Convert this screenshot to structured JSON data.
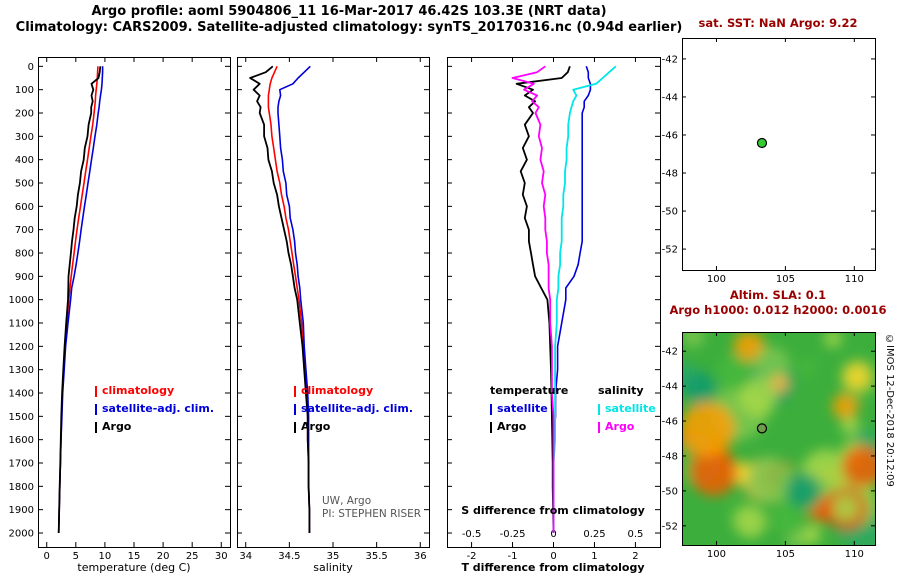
{
  "header": {
    "title_line1": "Argo profile: aoml 5904806_11 16-Mar-2017 46.42S 103.3E (NRT data)",
    "title_line2": "Climatology: CARS2009. Satellite-adjusted climatology: synTS_20170316.nc (0.94d earlier)"
  },
  "credits": {
    "org": "UW, Argo",
    "pi": "PI: STEPHEN RISER",
    "stamp": "©IMOS 12-Dec-2018 20:12:09"
  },
  "colors": {
    "climatology": "#ff0000",
    "satellite_adj": "#0000dd",
    "argo": "#000000",
    "salinity_satellite": "#00e6e6",
    "salinity_argo": "#ff00ff",
    "map_title": "#990000",
    "float_marker": "#33cc33",
    "sla_marker": "#6f9a4f",
    "sla_base": "#3cae3c"
  },
  "chart_data": [
    {
      "type": "line",
      "name": "temperature-profile",
      "xlabel": "temperature (deg C)",
      "x_ticks": [
        0,
        5,
        10,
        15,
        20,
        25,
        30
      ],
      "x_tick_labels": [
        "0",
        "5",
        "10",
        "15",
        "20",
        "25",
        "30"
      ],
      "xlim": [
        -1.5,
        31.5
      ],
      "y_ticks": [
        0,
        100,
        200,
        300,
        400,
        500,
        600,
        700,
        800,
        900,
        1000,
        1100,
        1200,
        1300,
        1400,
        1500,
        1600,
        1700,
        1800,
        1900,
        2000
      ],
      "ylim": [
        0,
        2000
      ],
      "depths": [
        0,
        25,
        50,
        75,
        100,
        125,
        150,
        175,
        200,
        250,
        300,
        350,
        400,
        450,
        500,
        550,
        600,
        650,
        700,
        750,
        800,
        850,
        900,
        950,
        1000,
        1100,
        1200,
        1300,
        1400,
        1500,
        1600,
        1700,
        1800,
        1900,
        2000
      ],
      "series": [
        {
          "name": "climatology",
          "color": "climatology",
          "values": [
            8.8,
            8.75,
            8.7,
            8.6,
            8.5,
            8.4,
            8.35,
            8.25,
            8.15,
            7.9,
            7.6,
            7.3,
            7.0,
            6.7,
            6.4,
            6.1,
            5.8,
            5.5,
            5.2,
            4.95,
            4.7,
            4.45,
            4.2,
            4.0,
            3.8,
            3.45,
            3.15,
            2.9,
            2.7,
            2.55,
            2.45,
            2.35,
            2.25,
            2.15,
            2.05
          ]
        },
        {
          "name": "satellite-adj. clim.",
          "color": "satellite_adj",
          "values": [
            9.6,
            9.6,
            9.55,
            9.5,
            9.4,
            9.25,
            9.1,
            9.0,
            8.85,
            8.6,
            8.3,
            8.0,
            7.7,
            7.4,
            7.1,
            6.8,
            6.5,
            6.2,
            5.9,
            5.65,
            5.35,
            5.05,
            4.7,
            4.3,
            4.1,
            3.65,
            3.25,
            3.0,
            2.75,
            2.6,
            2.45,
            2.35,
            2.25,
            2.15,
            2.05
          ]
        },
        {
          "name": "Argo",
          "color": "argo",
          "values": [
            9.2,
            9.1,
            8.9,
            7.7,
            8.0,
            7.7,
            7.9,
            7.65,
            7.65,
            7.2,
            7.0,
            6.55,
            6.35,
            5.9,
            5.7,
            5.35,
            5.15,
            4.8,
            4.6,
            4.35,
            4.15,
            3.95,
            3.75,
            3.7,
            3.65,
            3.35,
            3.07,
            2.84,
            2.65,
            2.51,
            2.42,
            2.33,
            2.23,
            2.14,
            2.05
          ]
        }
      ],
      "legend": [
        "climatology",
        "satellite-adj. clim.",
        "Argo"
      ]
    },
    {
      "type": "line",
      "name": "salinity-profile",
      "xlabel": "salinity",
      "x_ticks": [
        34,
        34.5,
        35,
        35.5,
        36
      ],
      "x_tick_labels": [
        "34",
        "34.5",
        "35",
        "35.5",
        "36"
      ],
      "xlim": [
        33.9,
        36.1
      ],
      "y_ticks": [
        0,
        100,
        200,
        300,
        400,
        500,
        600,
        700,
        800,
        900,
        1000,
        1100,
        1200,
        1300,
        1400,
        1500,
        1600,
        1700,
        1800,
        1900,
        2000
      ],
      "ylim": [
        0,
        2000
      ],
      "depths": [
        0,
        25,
        50,
        75,
        100,
        125,
        150,
        175,
        200,
        250,
        300,
        350,
        400,
        450,
        500,
        550,
        600,
        650,
        700,
        750,
        800,
        850,
        900,
        950,
        1000,
        1100,
        1200,
        1300,
        1400,
        1500,
        1600,
        1700,
        1800,
        1900,
        2000
      ],
      "series": [
        {
          "name": "climatology",
          "color": "climatology",
          "values": [
            34.36,
            34.33,
            34.3,
            34.28,
            34.27,
            34.26,
            34.26,
            34.26,
            34.27,
            34.29,
            34.3,
            34.32,
            34.34,
            34.36,
            34.39,
            34.41,
            34.44,
            34.46,
            34.49,
            34.51,
            34.53,
            34.55,
            34.57,
            34.59,
            34.61,
            34.64,
            34.66,
            34.68,
            34.7,
            34.71,
            34.71,
            34.72,
            34.72,
            34.73,
            34.73
          ]
        },
        {
          "name": "satellite-adj. clim.",
          "color": "satellite_adj",
          "values": [
            34.74,
            34.67,
            34.6,
            34.54,
            34.39,
            34.4,
            34.38,
            34.37,
            34.37,
            34.38,
            34.39,
            34.4,
            34.42,
            34.43,
            34.46,
            34.47,
            34.5,
            34.51,
            34.54,
            34.56,
            34.57,
            34.59,
            34.6,
            34.62,
            34.63,
            34.66,
            34.67,
            34.69,
            34.71,
            34.72,
            34.72,
            34.72,
            34.72,
            34.73,
            34.73
          ]
        },
        {
          "name": "Argo",
          "color": "argo",
          "values": [
            34.31,
            34.23,
            34.05,
            34.16,
            34.09,
            34.16,
            34.13,
            34.17,
            34.16,
            34.21,
            34.21,
            34.25,
            34.26,
            34.3,
            34.32,
            34.36,
            34.38,
            34.41,
            34.44,
            34.47,
            34.49,
            34.52,
            34.54,
            34.56,
            34.59,
            34.62,
            34.65,
            34.67,
            34.69,
            34.71,
            34.71,
            34.72,
            34.72,
            34.73,
            34.73
          ]
        }
      ],
      "legend": [
        "climatology",
        "satellite-adj. clim.",
        "Argo"
      ]
    },
    {
      "type": "line",
      "name": "difference-profile",
      "xlabel_bottom": "T difference from climatology",
      "xlabel_top": "S difference from climatology",
      "x_ticks": [
        -2,
        -1,
        0,
        1,
        2
      ],
      "x_tick_labels": [
        "-2",
        "-1",
        "0",
        "1",
        "2"
      ],
      "xlim": [
        -2.6,
        2.6
      ],
      "s_ticks": [
        -0.5,
        -0.25,
        0,
        0.25,
        0.5
      ],
      "s_tick_labels": [
        "-0.5",
        "-0.25",
        "0",
        "0.25",
        "0.5"
      ],
      "y_ticks": [
        0,
        100,
        200,
        300,
        400,
        500,
        600,
        700,
        800,
        900,
        1000,
        1100,
        1200,
        1300,
        1400,
        1500,
        1600,
        1700,
        1800,
        1900,
        2000
      ],
      "ylim": [
        0,
        2000
      ],
      "depths": [
        0,
        25,
        50,
        75,
        100,
        125,
        150,
        175,
        200,
        250,
        300,
        350,
        400,
        450,
        500,
        550,
        600,
        650,
        700,
        750,
        800,
        850,
        900,
        950,
        1000,
        1100,
        1200,
        1300,
        1400,
        1500,
        1600,
        1700,
        1800,
        1900,
        2000
      ],
      "series": [
        {
          "name": "T satellite",
          "axis": "T",
          "color": "satellite_adj",
          "values": [
            0.8,
            0.85,
            0.85,
            0.9,
            0.9,
            0.85,
            0.75,
            0.75,
            0.7,
            0.7,
            0.7,
            0.7,
            0.7,
            0.7,
            0.7,
            0.7,
            0.7,
            0.7,
            0.7,
            0.7,
            0.65,
            0.6,
            0.5,
            0.3,
            0.3,
            0.2,
            0.1,
            0.1,
            0.05,
            0.05,
            0,
            0,
            0,
            0,
            0
          ]
        },
        {
          "name": "T Argo",
          "axis": "T",
          "color": "argo",
          "values": [
            0.4,
            0.35,
            0.2,
            -0.9,
            -0.5,
            -0.7,
            -0.45,
            -0.6,
            -0.5,
            -0.7,
            -0.6,
            -0.75,
            -0.65,
            -0.8,
            -0.7,
            -0.75,
            -0.65,
            -0.7,
            -0.6,
            -0.6,
            -0.55,
            -0.5,
            -0.45,
            -0.3,
            -0.15,
            -0.1,
            -0.08,
            -0.06,
            -0.05,
            -0.04,
            -0.03,
            -0.02,
            -0.02,
            -0.01,
            0
          ]
        },
        {
          "name": "S satellite",
          "axis": "S",
          "color": "salinity_satellite",
          "values": [
            0.38,
            0.34,
            0.3,
            0.26,
            0.12,
            0.14,
            0.12,
            0.11,
            0.1,
            0.09,
            0.09,
            0.08,
            0.08,
            0.07,
            0.07,
            0.06,
            0.06,
            0.05,
            0.05,
            0.05,
            0.04,
            0.04,
            0.03,
            0.03,
            0.02,
            0.02,
            0.01,
            0.01,
            0.01,
            0.01,
            0.01,
            0,
            0,
            0,
            0
          ]
        },
        {
          "name": "S Argo",
          "axis": "S",
          "color": "salinity_argo",
          "values": [
            -0.05,
            -0.1,
            -0.25,
            -0.12,
            -0.18,
            -0.1,
            -0.13,
            -0.09,
            -0.11,
            -0.08,
            -0.09,
            -0.07,
            -0.08,
            -0.06,
            -0.07,
            -0.05,
            -0.06,
            -0.05,
            -0.05,
            -0.04,
            -0.04,
            -0.03,
            -0.03,
            -0.03,
            -0.02,
            -0.02,
            -0.01,
            -0.01,
            -0.01,
            0,
            0,
            0,
            0,
            0,
            0
          ]
        }
      ],
      "legend": {
        "temperature": {
          "header": "temperature",
          "items": [
            "satellite",
            "Argo"
          ]
        },
        "salinity": {
          "header": "salinity",
          "items": [
            "satellite",
            "Argo"
          ]
        }
      }
    },
    {
      "type": "scatter",
      "name": "float-location-map",
      "title": "sat. SST: NaN Argo: 9.22",
      "x_ticks": [
        100,
        105,
        110
      ],
      "y_ticks": [
        -42,
        -44,
        -46,
        -48,
        -50,
        -52
      ],
      "xlim": [
        97.5,
        111.5
      ],
      "ylim": [
        -53.1,
        -40.9
      ],
      "points": [
        {
          "lon": 103.3,
          "lat": -46.42
        }
      ]
    },
    {
      "type": "heatmap",
      "name": "sla-map",
      "title_line1": "Altim. SLA: 0.1",
      "title_line2": "Argo h1000: 0.012 h2000: 0.0016",
      "x_ticks": [
        100,
        105,
        110
      ],
      "y_ticks": [
        -42,
        -44,
        -46,
        -48,
        -50,
        -52
      ],
      "xlim": [
        97.5,
        111.5
      ],
      "ylim": [
        -53.1,
        -40.9
      ],
      "marker": {
        "lon": 103.3,
        "lat": -46.42
      }
    }
  ]
}
